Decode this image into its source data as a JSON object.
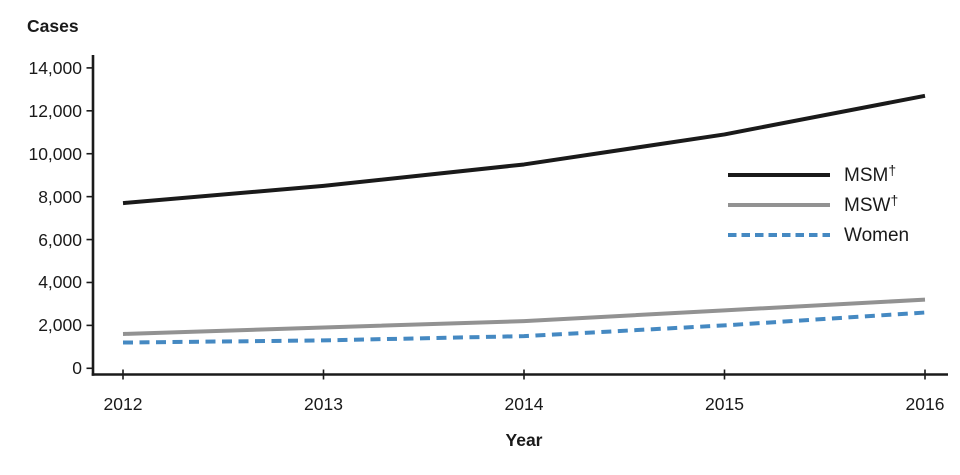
{
  "chart_data": {
    "type": "line",
    "title": "",
    "ylabel": "Cases",
    "xlabel": "Year",
    "categories": [
      "2012",
      "2013",
      "2014",
      "2015",
      "2016"
    ],
    "ylim": [
      0,
      14000
    ],
    "y_tick_interval": 2000,
    "y_tick_labels": [
      "0",
      "2,000",
      "4,000",
      "6,000",
      "8,000",
      "10,000",
      "12,000",
      "14,000"
    ],
    "grid": false,
    "legend_position": "inside-right",
    "series": [
      {
        "name": "MSM",
        "sup": "†",
        "style": "solid",
        "color": "#1a1a1a",
        "values": [
          7700,
          8500,
          9500,
          10900,
          12700
        ]
      },
      {
        "name": "MSW",
        "sup": "†",
        "style": "solid",
        "color": "#929292",
        "values": [
          1600,
          1900,
          2200,
          2700,
          3200
        ]
      },
      {
        "name": "Women",
        "sup": "",
        "style": "dashed",
        "color": "#4589c2",
        "values": [
          1200,
          1300,
          1500,
          2000,
          2600
        ]
      }
    ]
  }
}
